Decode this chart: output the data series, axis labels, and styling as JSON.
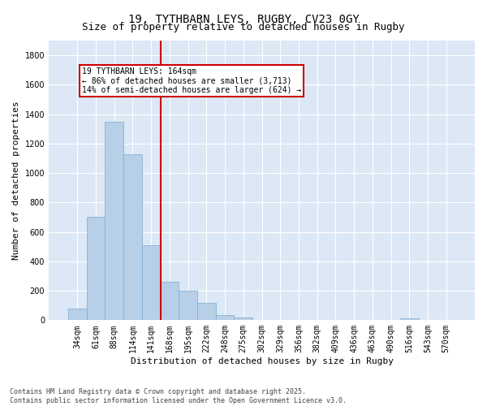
{
  "title1": "19, TYTHBARN LEYS, RUGBY, CV23 0GY",
  "title2": "Size of property relative to detached houses in Rugby",
  "xlabel": "Distribution of detached houses by size in Rugby",
  "ylabel": "Number of detached properties",
  "bar_color": "#b8cfe8",
  "bar_edge_color": "#7aaad0",
  "categories": [
    "34sqm",
    "61sqm",
    "88sqm",
    "114sqm",
    "141sqm",
    "168sqm",
    "195sqm",
    "222sqm",
    "248sqm",
    "275sqm",
    "302sqm",
    "329sqm",
    "356sqm",
    "382sqm",
    "409sqm",
    "436sqm",
    "463sqm",
    "490sqm",
    "516sqm",
    "543sqm",
    "570sqm"
  ],
  "values": [
    80,
    700,
    1350,
    1130,
    510,
    260,
    200,
    120,
    35,
    20,
    0,
    0,
    0,
    0,
    0,
    0,
    0,
    0,
    15,
    0,
    0
  ],
  "vline_color": "#cc0000",
  "annotation_text": "19 TYTHBARN LEYS: 164sqm\n← 86% of detached houses are smaller (3,713)\n14% of semi-detached houses are larger (624) →",
  "annotation_box_color": "#cc0000",
  "ylim": [
    0,
    1900
  ],
  "yticks": [
    0,
    200,
    400,
    600,
    800,
    1000,
    1200,
    1400,
    1600,
    1800
  ],
  "bg_color": "#dce8f5",
  "grid_color": "#ffffff",
  "footer1": "Contains HM Land Registry data © Crown copyright and database right 2025.",
  "footer2": "Contains public sector information licensed under the Open Government Licence v3.0.",
  "title_fontsize": 10,
  "subtitle_fontsize": 9,
  "tick_fontsize": 7,
  "label_fontsize": 8,
  "footer_fontsize": 6
}
